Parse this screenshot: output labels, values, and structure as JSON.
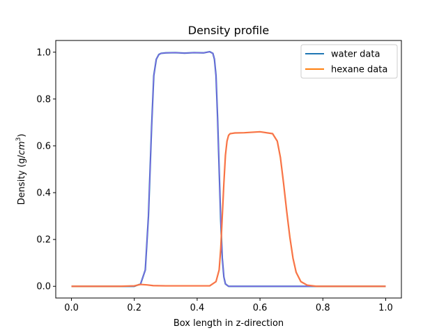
{
  "chart_data": {
    "type": "line",
    "title": "Density profile",
    "xlabel": "Box length in z-direction",
    "ylabel_prefix": "Density (g/",
    "ylabel_unit_base": "cm",
    "ylabel_unit_exp": "3",
    "ylabel_suffix": ")",
    "xlim": [
      -0.05,
      1.05
    ],
    "ylim": [
      -0.05,
      1.05
    ],
    "xticks": [
      0.0,
      0.2,
      0.4,
      0.6,
      0.8,
      1.0
    ],
    "xtick_labels": [
      "0.0",
      "0.2",
      "0.4",
      "0.6",
      "0.8",
      "1.0"
    ],
    "yticks": [
      0.0,
      0.2,
      0.4,
      0.6,
      0.8,
      1.0
    ],
    "ytick_labels": [
      "0.0",
      "0.2",
      "0.4",
      "0.6",
      "0.8",
      "1.0"
    ],
    "grid": false,
    "legend_position": "upper right",
    "series": [
      {
        "name": "water data",
        "color": "#1f77b4",
        "fit_color": "#bf5fff",
        "x": [
          0.0,
          0.05,
          0.1,
          0.15,
          0.2,
          0.22,
          0.235,
          0.245,
          0.255,
          0.262,
          0.27,
          0.278,
          0.285,
          0.3,
          0.33,
          0.36,
          0.39,
          0.42,
          0.44,
          0.45,
          0.455,
          0.46,
          0.465,
          0.47,
          0.475,
          0.48,
          0.485,
          0.49,
          0.5,
          0.52,
          0.6,
          0.7,
          0.8,
          0.9,
          1.0
        ],
        "y": [
          0.0,
          0.0,
          0.0,
          0.0,
          0.0,
          0.01,
          0.07,
          0.3,
          0.68,
          0.9,
          0.97,
          0.99,
          0.995,
          0.997,
          0.998,
          0.996,
          0.998,
          0.997,
          1.002,
          0.995,
          0.97,
          0.9,
          0.72,
          0.5,
          0.28,
          0.12,
          0.04,
          0.01,
          0.0,
          0.0,
          0.0,
          0.0,
          0.0,
          0.0,
          0.0
        ]
      },
      {
        "name": "hexane data",
        "color": "#ff7f0e",
        "fit_color": "#f06292",
        "x": [
          0.0,
          0.05,
          0.1,
          0.15,
          0.2,
          0.22,
          0.24,
          0.26,
          0.3,
          0.35,
          0.4,
          0.44,
          0.46,
          0.47,
          0.475,
          0.48,
          0.485,
          0.49,
          0.495,
          0.5,
          0.505,
          0.51,
          0.52,
          0.55,
          0.6,
          0.64,
          0.655,
          0.665,
          0.675,
          0.685,
          0.695,
          0.705,
          0.715,
          0.73,
          0.75,
          0.78,
          0.8,
          0.9,
          1.0
        ],
        "y": [
          0.0,
          0.0,
          0.0,
          0.0,
          0.002,
          0.008,
          0.006,
          0.003,
          0.002,
          0.002,
          0.002,
          0.002,
          0.02,
          0.07,
          0.16,
          0.3,
          0.44,
          0.56,
          0.62,
          0.645,
          0.652,
          0.653,
          0.655,
          0.656,
          0.66,
          0.652,
          0.62,
          0.55,
          0.44,
          0.32,
          0.21,
          0.12,
          0.06,
          0.02,
          0.005,
          0.0,
          0.0,
          0.0,
          0.0
        ]
      }
    ]
  }
}
